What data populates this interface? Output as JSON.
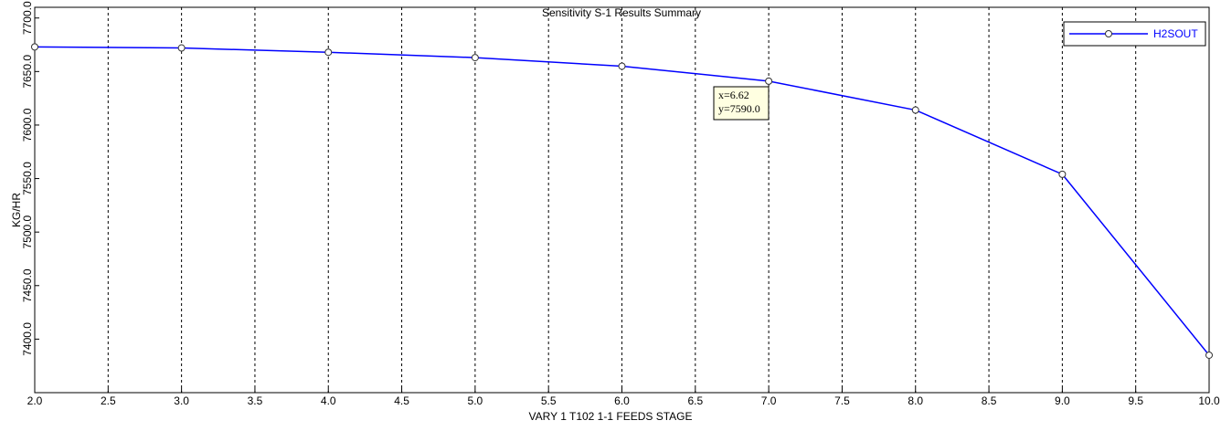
{
  "chart_data": {
    "type": "line",
    "title": "Sensitivity S-1 Results Summary",
    "x_label": "VARY   1 T102 1-1 FEEDS STAGE",
    "y_label": "KG/HR",
    "x": [
      2,
      3,
      4,
      5,
      6,
      7,
      8,
      9,
      10
    ],
    "series": [
      {
        "name": "H2SOUT",
        "color": "#0000ff",
        "values": [
          7673,
          7672,
          7668,
          7663,
          7655,
          7641,
          7614,
          7554,
          7385
        ]
      }
    ],
    "xlim": [
      2,
      10
    ],
    "xticks": [
      {
        "value": 2,
        "label": "2.0"
      },
      {
        "value": 2.5,
        "label": "2.5"
      },
      {
        "value": 3,
        "label": "3.0"
      },
      {
        "value": 3.5,
        "label": "3.5"
      },
      {
        "value": 4,
        "label": "4.0"
      },
      {
        "value": 4.5,
        "label": "4.5"
      },
      {
        "value": 5,
        "label": "5.0"
      },
      {
        "value": 5.5,
        "label": "5.5"
      },
      {
        "value": 6,
        "label": "6.0"
      },
      {
        "value": 6.5,
        "label": "6.5"
      },
      {
        "value": 7,
        "label": "7.0"
      },
      {
        "value": 7.5,
        "label": "7.5"
      },
      {
        "value": 8,
        "label": "8.0"
      },
      {
        "value": 8.5,
        "label": "8.5"
      },
      {
        "value": 9,
        "label": "9.0"
      },
      {
        "value": 9.5,
        "label": "9.5"
      },
      {
        "value": 10,
        "label": "10.0"
      }
    ],
    "ylim": [
      7350,
      7710
    ],
    "yticks": [
      {
        "value": 7400,
        "label": "7400.0"
      },
      {
        "value": 7450,
        "label": "7450.0"
      },
      {
        "value": 7500,
        "label": "7500.0"
      },
      {
        "value": 7550,
        "label": "7550.0"
      },
      {
        "value": 7600,
        "label": "7600.0"
      },
      {
        "value": 7650,
        "label": "7650.0"
      },
      {
        "value": 7700,
        "label": "7700.0"
      }
    ],
    "grid": true,
    "legend": "upper-right",
    "annotation": [
      "x=6.62",
      "y=7590.0"
    ]
  }
}
